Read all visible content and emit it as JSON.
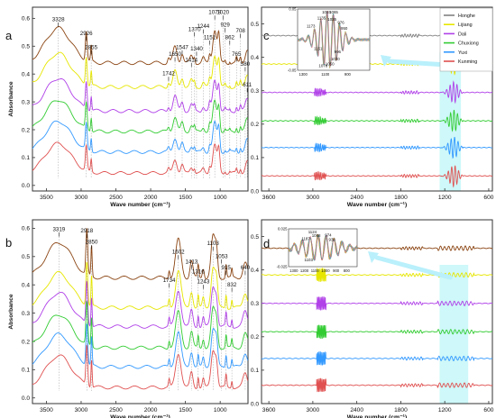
{
  "legend": [
    {
      "name": "Honghe",
      "color": "#808080"
    },
    {
      "name": "Lijiang",
      "color": "#e6e600"
    },
    {
      "name": "Dali",
      "color": "#b040e8"
    },
    {
      "name": "Chuxiong",
      "color": "#33cc33"
    },
    {
      "name": "Yuxi",
      "color": "#3399ff"
    },
    {
      "name": "Kunming",
      "color": "#e05050"
    }
  ],
  "chart_data": [
    {
      "id": "a",
      "panel_label": "a",
      "type": "line",
      "xlabel": "Wave number (cm⁻¹)",
      "ylabel": "Absorbance",
      "xlim": [
        3700,
        600
      ],
      "ylim": [
        -0.02,
        0.64
      ],
      "xticks": [
        3500,
        3000,
        2500,
        2000,
        1500,
        1000
      ],
      "yticks": [
        0.0,
        0.1,
        0.2,
        0.3,
        0.4,
        0.5,
        0.6
      ],
      "ytick_labels": [
        "0.0",
        "0.1",
        "0.2",
        "0.3",
        "0.4",
        "0.5",
        "0.6"
      ],
      "series": [
        {
          "color": "#8b4513",
          "offset": 0.39
        },
        {
          "color": "#e6e600",
          "offset": 0.3
        },
        {
          "color": "#b040e8",
          "offset": 0.22
        },
        {
          "color": "#33cc33",
          "offset": 0.14
        },
        {
          "color": "#3399ff",
          "offset": 0.07
        },
        {
          "color": "#e05050",
          "offset": 0.0
        }
      ],
      "annotations": [
        {
          "text": "3328",
          "x": 3328,
          "y": 0.59
        },
        {
          "text": "2926",
          "x": 2926,
          "y": 0.54
        },
        {
          "text": "2855",
          "x": 2855,
          "y": 0.49
        },
        {
          "text": "1742",
          "x": 1742,
          "y": 0.395
        },
        {
          "text": "1650",
          "x": 1650,
          "y": 0.465
        },
        {
          "text": "1547",
          "x": 1547,
          "y": 0.49
        },
        {
          "text": "1414",
          "x": 1414,
          "y": 0.445
        },
        {
          "text": "1370",
          "x": 1370,
          "y": 0.555
        },
        {
          "text": "1340",
          "x": 1340,
          "y": 0.485
        },
        {
          "text": "1244",
          "x": 1244,
          "y": 0.565
        },
        {
          "text": "1151",
          "x": 1151,
          "y": 0.525
        },
        {
          "text": "1078",
          "x": 1078,
          "y": 0.615
        },
        {
          "text": "1020",
          "x": 960,
          "y": 0.615
        },
        {
          "text": "929",
          "x": 929,
          "y": 0.57
        },
        {
          "text": "862",
          "x": 862,
          "y": 0.525
        },
        {
          "text": "708",
          "x": 708,
          "y": 0.55
        },
        {
          "text": "765",
          "x": 765,
          "y": 0.465
        },
        {
          "text": "580",
          "x": 640,
          "y": 0.43
        },
        {
          "text": "611",
          "x": 611,
          "y": 0.355
        }
      ]
    },
    {
      "id": "b",
      "panel_label": "b",
      "type": "line",
      "xlabel": "Wave number (cm⁻¹)",
      "ylabel": "Absorbance",
      "xlim": [
        3700,
        600
      ],
      "ylim": [
        -0.02,
        0.63
      ],
      "xticks": [
        3500,
        3000,
        2500,
        2000,
        1500,
        1000
      ],
      "yticks": [
        0.0,
        0.1,
        0.2,
        0.3,
        0.4,
        0.5,
        0.6
      ],
      "ytick_labels": [
        "0.0",
        "0.1",
        "0.2",
        "0.3",
        "0.4",
        "0.5",
        "0.6"
      ],
      "series": [
        {
          "color": "#8b4513",
          "offset": 0.36
        },
        {
          "color": "#e6e600",
          "offset": 0.28
        },
        {
          "color": "#b040e8",
          "offset": 0.21
        },
        {
          "color": "#33cc33",
          "offset": 0.14
        },
        {
          "color": "#3399ff",
          "offset": 0.07
        },
        {
          "color": "#e05050",
          "offset": 0.0
        }
      ],
      "annotations": [
        {
          "text": "3319",
          "x": 3319,
          "y": 0.59
        },
        {
          "text": "2918",
          "x": 2918,
          "y": 0.585
        },
        {
          "text": "2850",
          "x": 2850,
          "y": 0.545
        },
        {
          "text": "1734",
          "x": 1734,
          "y": 0.41
        },
        {
          "text": "1602",
          "x": 1602,
          "y": 0.51
        },
        {
          "text": "1413",
          "x": 1413,
          "y": 0.475
        },
        {
          "text": "1316",
          "x": 1316,
          "y": 0.44
        },
        {
          "text": "1243",
          "x": 1243,
          "y": 0.405
        },
        {
          "text": "1103",
          "x": 1103,
          "y": 0.54
        },
        {
          "text": "1053",
          "x": 980,
          "y": 0.495
        },
        {
          "text": "915",
          "x": 915,
          "y": 0.455
        },
        {
          "text": "832",
          "x": 832,
          "y": 0.395
        },
        {
          "text": "640",
          "x": 640,
          "y": 0.455
        }
      ]
    },
    {
      "id": "c",
      "panel_label": "c",
      "type": "line",
      "xlabel": "Wave number (cm⁻¹)",
      "ylabel": "",
      "xlim": [
        3700,
        550
      ],
      "ylim": [
        0,
        0.55
      ],
      "xticks": [
        3600,
        3000,
        2400,
        1800,
        1200,
        600
      ],
      "yticks": [
        0.0,
        0.1,
        0.2,
        0.3,
        0.4,
        0.5
      ],
      "ytick_labels": [
        "0.0",
        "0.1",
        "0.2",
        "0.3",
        "0.4",
        "0.5"
      ],
      "highlight": [
        1270,
        980
      ],
      "series": [
        {
          "color": "#808080",
          "offset": 0.465
        },
        {
          "color": "#e6e600",
          "offset": 0.38
        },
        {
          "color": "#b040e8",
          "offset": 0.295
        },
        {
          "color": "#33cc33",
          "offset": 0.21
        },
        {
          "color": "#3399ff",
          "offset": 0.13
        },
        {
          "color": "#e05050",
          "offset": 0.045
        }
      ],
      "inset": {
        "xlim": [
          1350,
          700
        ],
        "ylim": [
          -0.05,
          0.05
        ],
        "xticks": [
          1300,
          1100,
          900
        ],
        "xtick_labels": [
          "1300",
          "1100",
          "900"
        ],
        "yticks": [
          -0.05,
          0.05
        ],
        "ytick_labels": [
          "-0.05",
          "0.05"
        ],
        "annotations": [
          {
            "text": "1173",
            "x": 1230,
            "y": 0.02
          },
          {
            "text": "1135",
            "x": 1135,
            "y": 0.033
          },
          {
            "text": "1093",
            "x": 1090,
            "y": 0.043
          },
          {
            "text": "1065",
            "x": 1025,
            "y": 0.043
          },
          {
            "text": "1035",
            "x": 1040,
            "y": 0.031
          },
          {
            "text": "976",
            "x": 960,
            "y": 0.026
          },
          {
            "text": "950",
            "x": 930,
            "y": 0.016
          },
          {
            "text": "1151",
            "x": 1165,
            "y": -0.017
          },
          {
            "text": "996",
            "x": 990,
            "y": -0.022
          },
          {
            "text": "1020",
            "x": 1010,
            "y": -0.034
          },
          {
            "text": "1050",
            "x": 1060,
            "y": -0.042
          },
          {
            "text": "1078",
            "x": 1120,
            "y": -0.045
          }
        ]
      }
    },
    {
      "id": "d",
      "panel_label": "d",
      "type": "line",
      "xlabel": "Wave number (cm⁻¹)",
      "ylabel": "",
      "xlim": [
        3700,
        550
      ],
      "ylim": [
        0,
        0.55
      ],
      "xticks": [
        3600,
        3000,
        2400,
        1800,
        1200,
        600
      ],
      "yticks": [
        0.0,
        0.1,
        0.2,
        0.3,
        0.4,
        0.5
      ],
      "ytick_labels": [
        "0.0",
        "0.1",
        "0.2",
        "0.3",
        "0.4",
        "0.5"
      ],
      "highlight": [
        1270,
        880
      ],
      "series": [
        {
          "color": "#8b4513",
          "offset": 0.465
        },
        {
          "color": "#e6e600",
          "offset": 0.385
        },
        {
          "color": "#b040e8",
          "offset": 0.3
        },
        {
          "color": "#33cc33",
          "offset": 0.215
        },
        {
          "color": "#3399ff",
          "offset": 0.135
        },
        {
          "color": "#e05050",
          "offset": 0.055
        }
      ],
      "inset": {
        "xlim": [
          1350,
          700
        ],
        "ylim": [
          -0.025,
          0.025
        ],
        "xticks": [
          1300,
          1200,
          1100,
          1000,
          900,
          800
        ],
        "xtick_labels": [
          "1300",
          "1200",
          "1100",
          "1000",
          "900",
          "800"
        ],
        "yticks": [
          -0.025,
          0.025
        ],
        "ytick_labels": [
          "-0.025",
          "0.025"
        ],
        "annotations": [
          {
            "text": "1187",
            "x": 1187,
            "y": 0.01
          },
          {
            "text": "1124",
            "x": 1124,
            "y": 0.019
          },
          {
            "text": "1088",
            "x": 1088,
            "y": 0.014
          },
          {
            "text": "974",
            "x": 974,
            "y": 0.015
          },
          {
            "text": "938",
            "x": 938,
            "y": 0.009
          },
          {
            "text": "1103",
            "x": 1160,
            "y": -0.018
          }
        ]
      }
    }
  ]
}
